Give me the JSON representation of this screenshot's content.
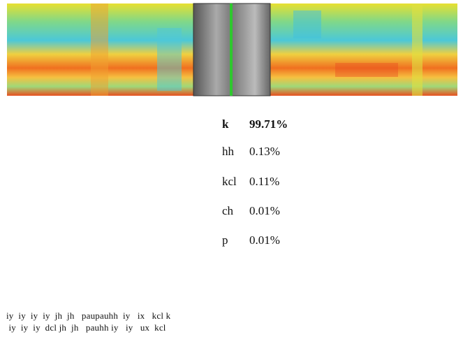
{
  "predictions": [
    {
      "label": "k",
      "value": "99.71%"
    },
    {
      "label": "hh",
      "value": "0.13%"
    },
    {
      "label": "kcl",
      "value": "0.11%"
    },
    {
      "label": "ch",
      "value": "0.01%"
    },
    {
      "label": "p",
      "value": "0.01%"
    }
  ],
  "sequence": {
    "top": "iy  iy  iy  iy  jh  jh   paupauhh  iy   ix   kcl k",
    "bottom": " iy  iy  iy  dcl jh  jh   pauhh iy   iy   ux  kcl"
  }
}
